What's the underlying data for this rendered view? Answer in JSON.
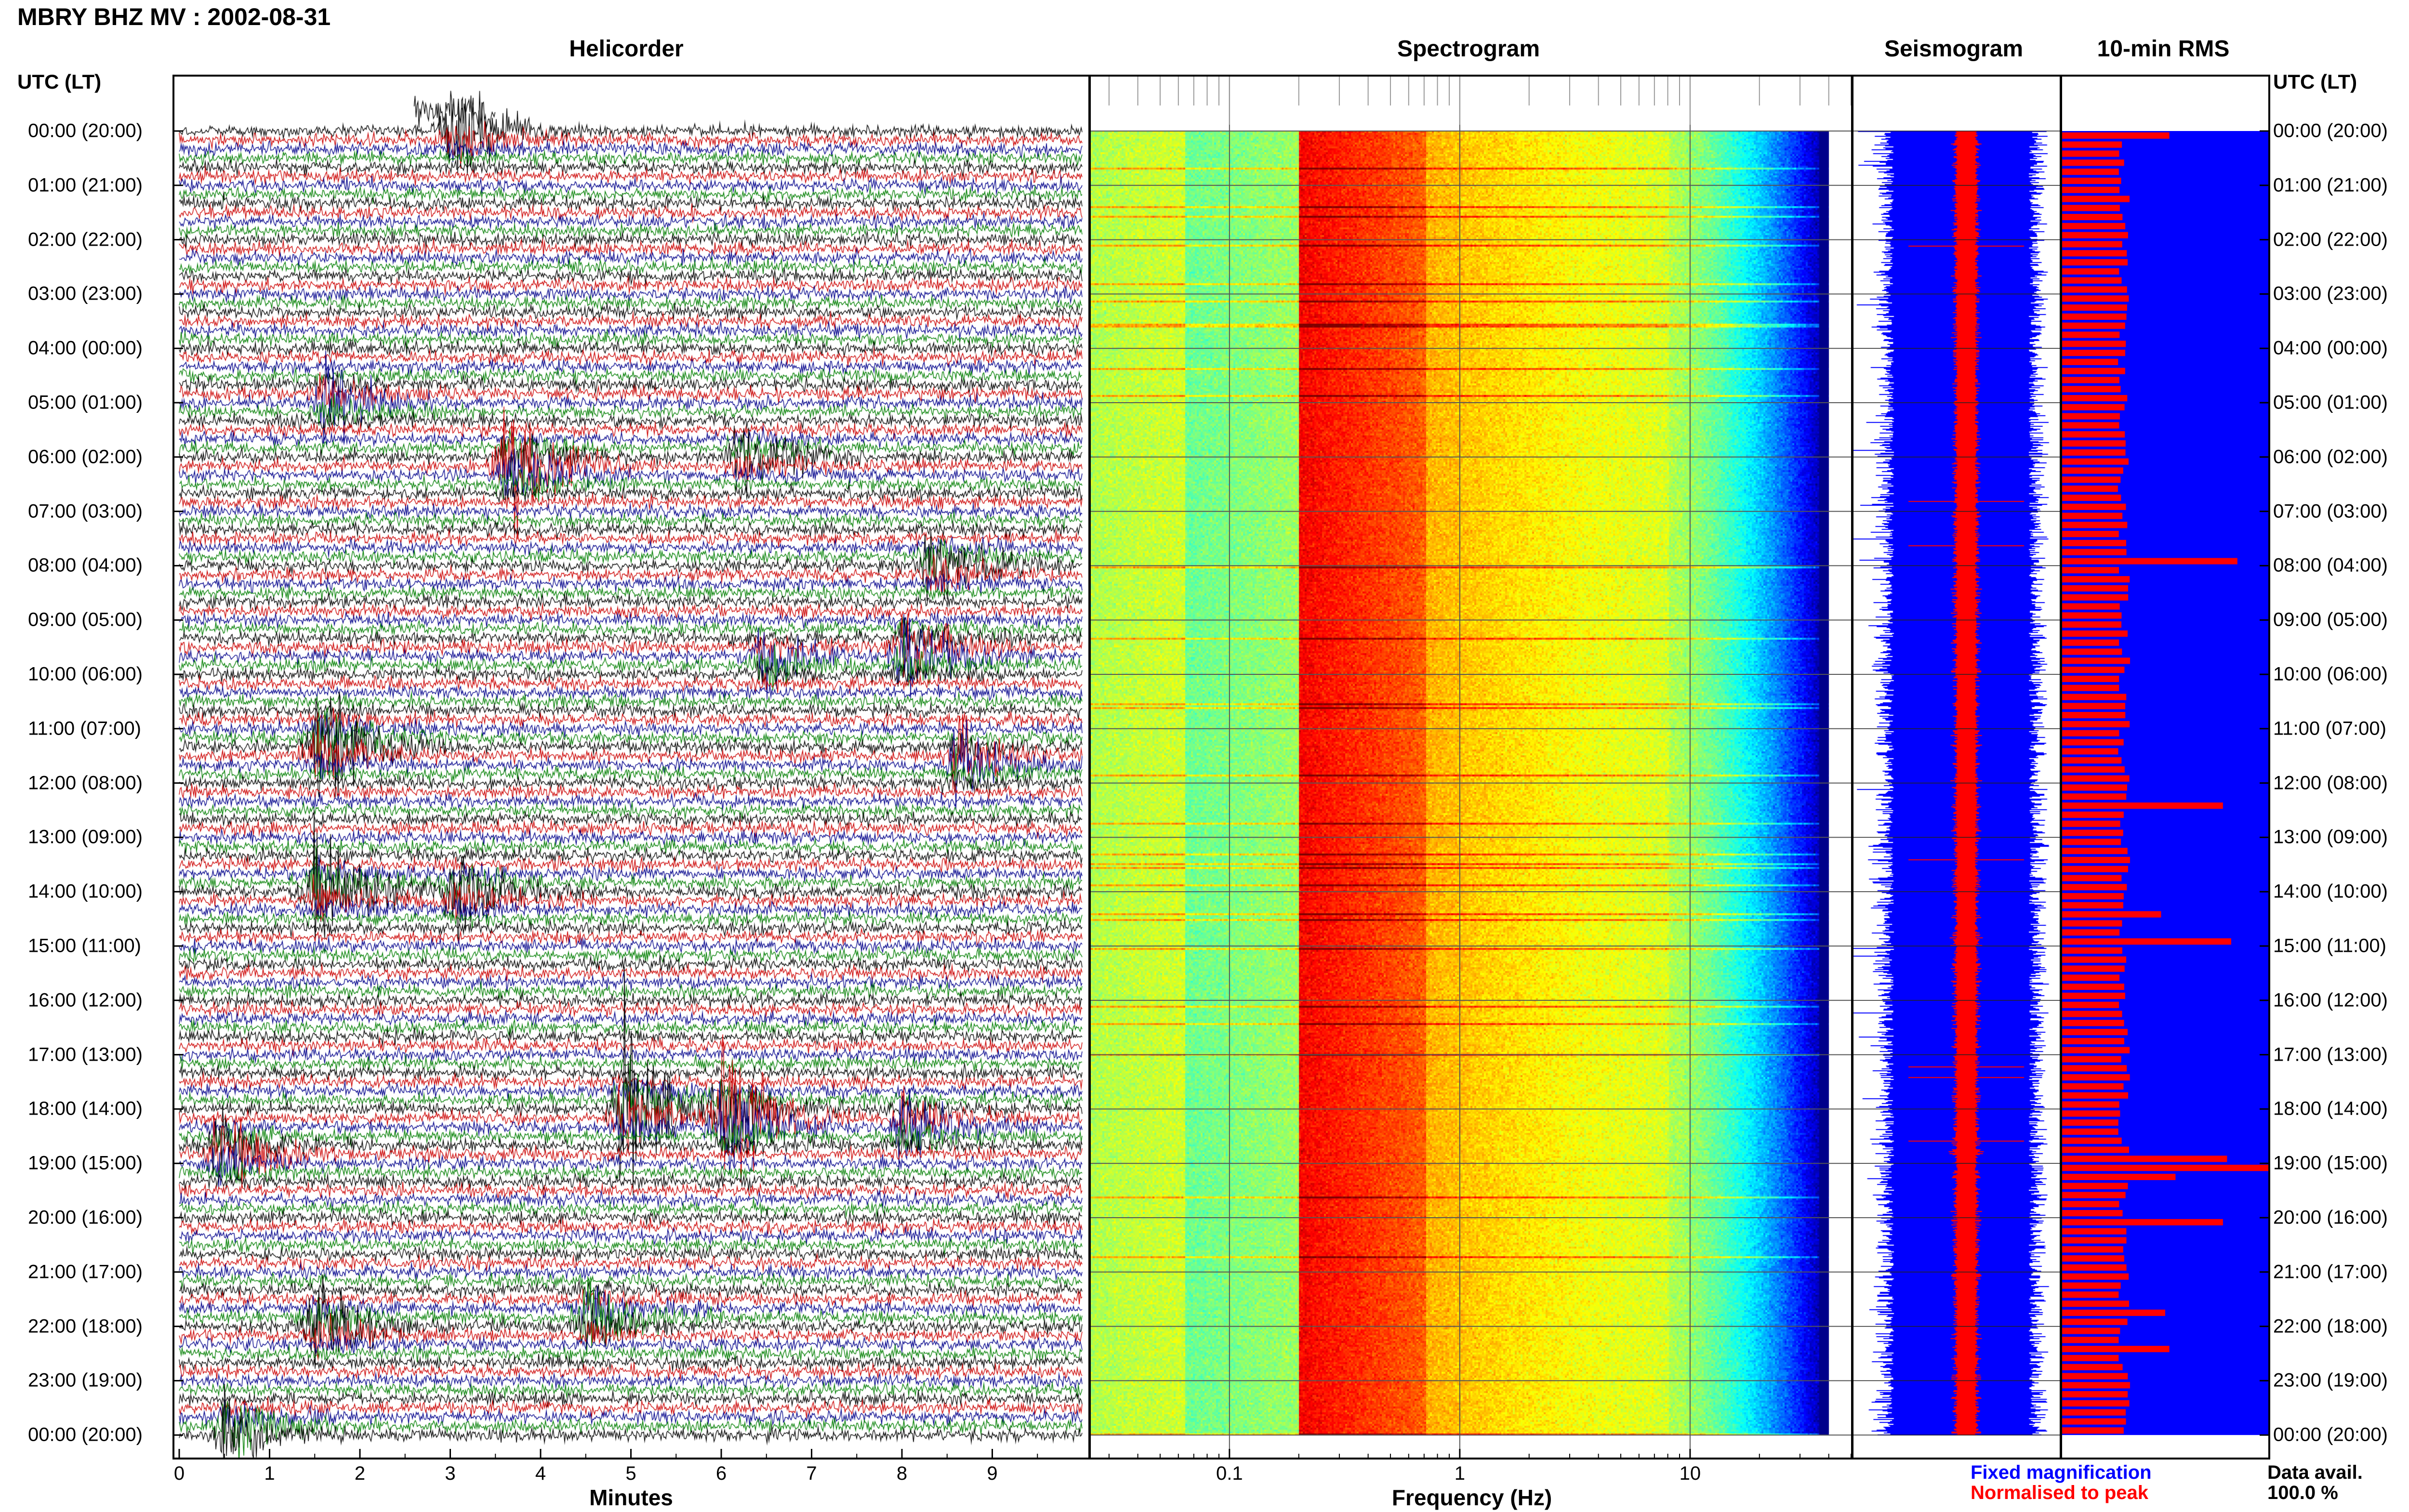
{
  "header": {
    "title": "MBRY BHZ MV : 2002-08-31"
  },
  "panels": {
    "helicorder": "Helicorder",
    "spectrogram": "Spectrogram",
    "seismogram": "Seismogram",
    "rms": "10-min RMS"
  },
  "time_axis": {
    "header": "UTC (LT)",
    "labels": [
      "00:00 (20:00)",
      "01:00 (21:00)",
      "02:00 (22:00)",
      "03:00 (23:00)",
      "04:00 (00:00)",
      "05:00 (01:00)",
      "06:00 (02:00)",
      "07:00 (03:00)",
      "08:00 (04:00)",
      "09:00 (05:00)",
      "10:00 (06:00)",
      "11:00 (07:00)",
      "12:00 (08:00)",
      "13:00 (09:00)",
      "14:00 (10:00)",
      "15:00 (11:00)",
      "16:00 (12:00)",
      "17:00 (13:00)",
      "18:00 (14:00)",
      "19:00 (15:00)",
      "20:00 (16:00)",
      "21:00 (17:00)",
      "22:00 (18:00)",
      "23:00 (19:00)",
      "00:00 (20:00)"
    ]
  },
  "legend": {
    "fixed": "Fixed magnification",
    "normalised": "Normalised to peak",
    "data_avail_label": "Data avail.",
    "data_avail_value": "100.0 %"
  },
  "colors": {
    "trace_cycle": [
      "#000000",
      "#cc0000",
      "#00008b",
      "#007f00"
    ],
    "seismogram_fixed": "#0000ff",
    "seismogram_norm": "#ff0000",
    "rms_bar": "#ff0000",
    "rms_background": "#0000ff"
  },
  "chart_data": [
    {
      "type": "line",
      "panel": "Helicorder",
      "xlabel": "Minutes",
      "x_ticks": [
        0,
        1,
        2,
        3,
        4,
        5,
        6,
        7,
        8,
        9
      ],
      "xlim": [
        0,
        10
      ],
      "rows": 144,
      "events": [
        {
          "hour": 0.0,
          "minute": 3.0,
          "amp": 1.0
        },
        {
          "hour": 5.0,
          "minute": 1.6,
          "amp": 0.8
        },
        {
          "hour": 6.2,
          "minute": 3.6,
          "amp": 1.6
        },
        {
          "hour": 6.0,
          "minute": 6.2,
          "amp": 0.9
        },
        {
          "hour": 8.0,
          "minute": 8.3,
          "amp": 1.0
        },
        {
          "hour": 9.6,
          "minute": 8.0,
          "amp": 1.4
        },
        {
          "hour": 9.7,
          "minute": 6.4,
          "amp": 0.8
        },
        {
          "hour": 11.3,
          "minute": 1.5,
          "amp": 1.6
        },
        {
          "hour": 11.6,
          "minute": 8.6,
          "amp": 1.1
        },
        {
          "hour": 14.0,
          "minute": 1.5,
          "amp": 1.2
        },
        {
          "hour": 14.0,
          "minute": 3.0,
          "amp": 1.0
        },
        {
          "hour": 18.0,
          "minute": 4.9,
          "amp": 1.8
        },
        {
          "hour": 18.2,
          "minute": 6.0,
          "amp": 2.0
        },
        {
          "hour": 18.3,
          "minute": 8.0,
          "amp": 1.0
        },
        {
          "hour": 18.8,
          "minute": 0.4,
          "amp": 1.2
        },
        {
          "hour": 22.0,
          "minute": 1.5,
          "amp": 1.0
        },
        {
          "hour": 21.8,
          "minute": 4.5,
          "amp": 1.0
        },
        {
          "hour": 23.9,
          "minute": 0.5,
          "amp": 1.2
        }
      ]
    },
    {
      "type": "heatmap",
      "panel": "Spectrogram",
      "xlabel": "Frequency (Hz)",
      "x_scale": "log",
      "xlim": [
        0.025,
        50
      ],
      "x_ticks": [
        0.1,
        1,
        10
      ],
      "x_tick_labels": [
        "0.1",
        "1",
        "10"
      ],
      "ylim": [
        0,
        24
      ],
      "dominant_band_hz": [
        0.2,
        0.7
      ],
      "secondary_band_hz": [
        2.5,
        5.0
      ],
      "upper_cutoff_hz": 40
    },
    {
      "type": "line",
      "panel": "Seismogram",
      "series": [
        {
          "name": "Fixed magnification"
        },
        {
          "name": "Normalised to peak"
        }
      ]
    },
    {
      "type": "bar",
      "panel": "10-min RMS",
      "orientation": "horizontal",
      "bins": 144,
      "typical_level": 0.3,
      "peaks": [
        {
          "hour": 0.0,
          "value": 0.52
        },
        {
          "hour": 7.8,
          "value": 0.85
        },
        {
          "hour": 12.4,
          "value": 0.78
        },
        {
          "hour": 14.4,
          "value": 0.48
        },
        {
          "hour": 14.8,
          "value": 0.82
        },
        {
          "hour": 18.8,
          "value": 0.8
        },
        {
          "hour": 19.0,
          "value": 1.0
        },
        {
          "hour": 19.1,
          "value": 0.55
        },
        {
          "hour": 20.0,
          "value": 0.78
        },
        {
          "hour": 21.7,
          "value": 0.5
        },
        {
          "hour": 22.4,
          "value": 0.52
        }
      ]
    }
  ]
}
